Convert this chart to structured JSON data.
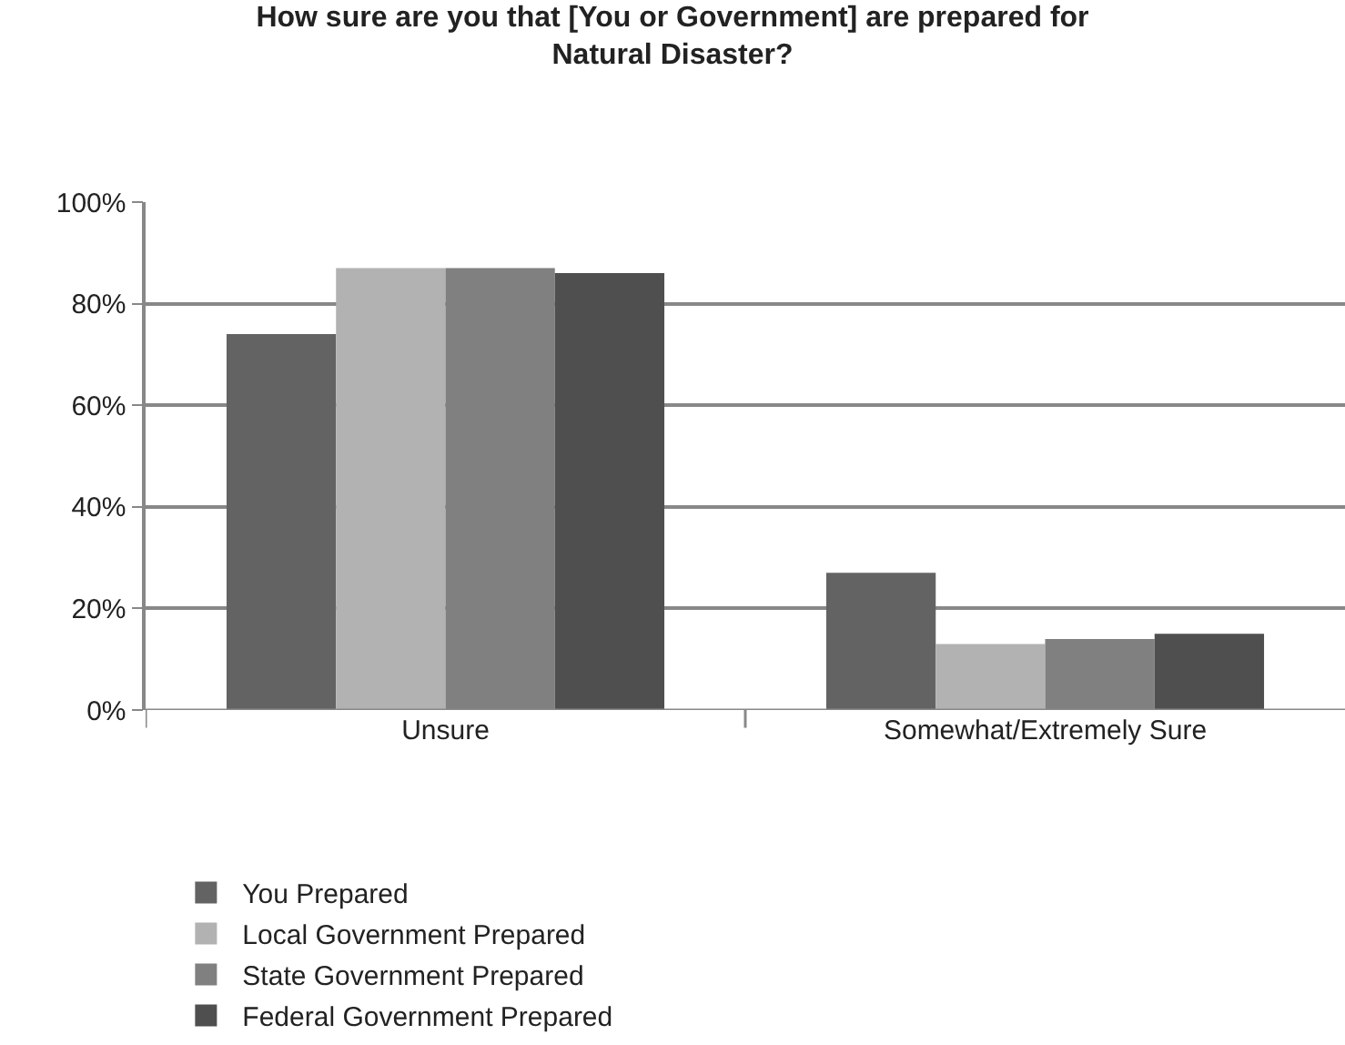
{
  "chart_data": {
    "type": "bar",
    "title": "How sure are you that [You or Government] are prepared for\nNatural Disaster?",
    "categories": [
      "Unsure",
      "Somewhat/Extremely Sure"
    ],
    "series": [
      {
        "name": "You Prepared",
        "color": "#636363",
        "values": [
          74,
          27
        ]
      },
      {
        "name": "Local Government Prepared",
        "color": "#b2b2b2",
        "values": [
          87,
          13
        ]
      },
      {
        "name": "State Government Prepared",
        "color": "#808080",
        "values": [
          87,
          14
        ]
      },
      {
        "name": "Federal Government Prepared",
        "color": "#4f4f4f",
        "values": [
          86,
          15
        ]
      }
    ],
    "ylim": [
      0,
      100
    ],
    "yticks": [
      {
        "value": 0,
        "label": "0%"
      },
      {
        "value": 20,
        "label": "20%"
      },
      {
        "value": 40,
        "label": "40%"
      },
      {
        "value": 60,
        "label": "60%"
      },
      {
        "value": 80,
        "label": "80%"
      },
      {
        "value": 100,
        "label": "100%"
      }
    ],
    "grid": "y",
    "legend": "bottom"
  }
}
